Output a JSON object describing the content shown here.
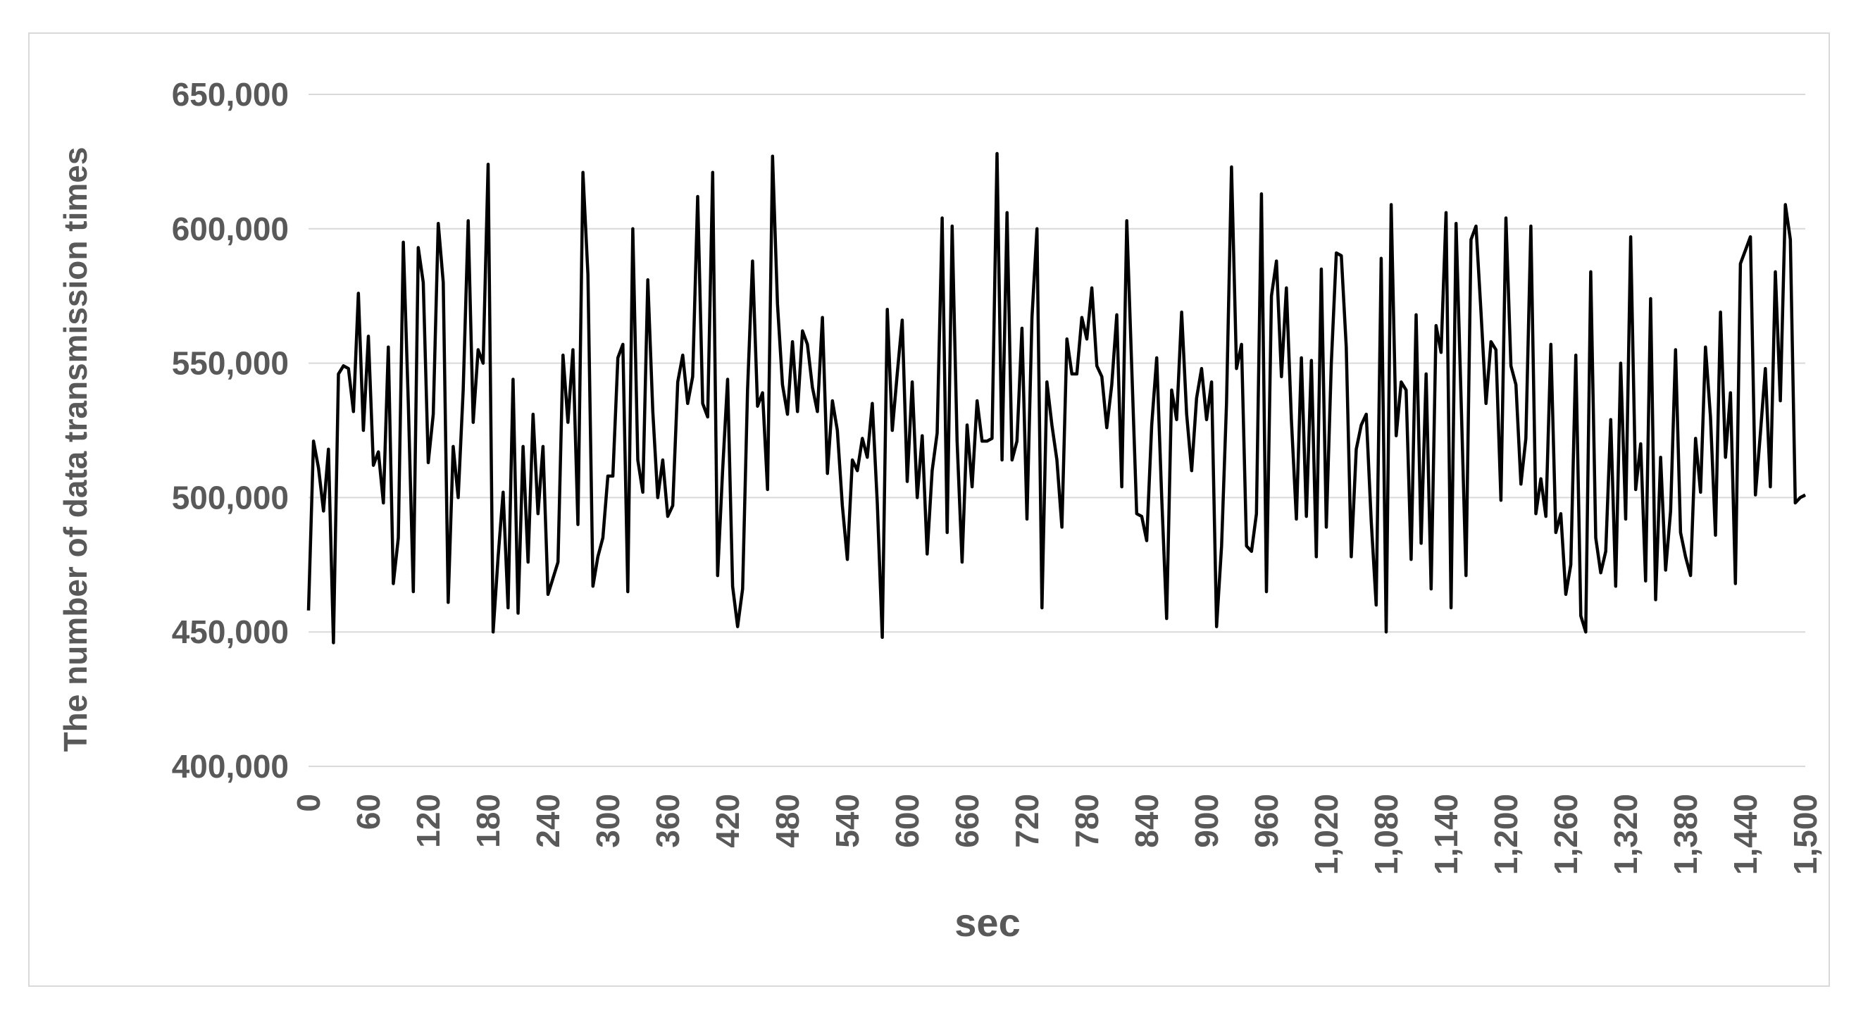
{
  "chart_data": {
    "type": "line",
    "title": "",
    "xlabel": "sec",
    "ylabel": "The number of data transmission  times",
    "xlim": [
      0,
      1500
    ],
    "ylim": [
      400000,
      650000
    ],
    "x_ticks": [
      0,
      60,
      120,
      180,
      240,
      300,
      360,
      420,
      480,
      540,
      600,
      660,
      720,
      780,
      840,
      900,
      960,
      1020,
      1080,
      1140,
      1200,
      1260,
      1320,
      1380,
      1440,
      1500
    ],
    "x_tick_labels": [
      "0",
      "60",
      "120",
      "180",
      "240",
      "300",
      "360",
      "420",
      "480",
      "540",
      "600",
      "660",
      "720",
      "780",
      "840",
      "900",
      "960",
      "1,020",
      "1,080",
      "1,140",
      "1,200",
      "1,260",
      "1,320",
      "1,380",
      "1,440",
      "1,500"
    ],
    "y_ticks": [
      400000,
      450000,
      500000,
      550000,
      600000,
      650000
    ],
    "y_tick_labels": [
      "400,000",
      "450,000",
      "500,000",
      "550,000",
      "600,000",
      "650,000"
    ],
    "grid": "horizontal",
    "legend": "none",
    "line_color": "#000000",
    "grid_color": "#d9d9d9",
    "tick_label_color": "#595959",
    "series": [
      {
        "x": [
          0,
          5,
          10,
          15,
          20,
          25,
          30,
          35,
          40,
          45,
          50,
          55,
          60,
          65,
          70,
          75,
          80,
          85,
          90,
          95,
          100,
          105,
          110,
          115,
          120,
          125,
          130,
          135,
          140,
          145,
          150,
          155,
          160,
          165,
          170,
          175,
          180,
          185,
          190,
          195,
          200,
          205,
          210,
          215,
          220,
          225,
          230,
          235,
          240,
          245,
          250,
          255,
          260,
          265,
          270,
          275,
          280,
          285,
          290,
          295,
          300,
          305,
          310,
          315,
          320,
          325,
          330,
          335,
          340,
          345,
          350,
          355,
          360,
          365,
          370,
          375,
          380,
          385,
          390,
          395,
          400,
          405,
          410,
          415,
          420,
          425,
          430,
          435,
          440,
          445,
          450,
          455,
          460,
          465,
          470,
          475,
          480,
          485,
          490,
          495,
          500,
          505,
          510,
          515,
          520,
          525,
          530,
          535,
          540,
          545,
          550,
          555,
          560,
          565,
          570,
          575,
          580,
          585,
          590,
          595,
          600,
          605,
          610,
          615,
          620,
          625,
          630,
          635,
          640,
          645,
          650,
          655,
          660,
          665,
          670,
          675,
          680,
          685,
          690,
          695,
          700,
          705,
          710,
          715,
          720,
          725,
          730,
          735,
          740,
          745,
          750,
          755,
          760,
          765,
          770,
          775,
          780,
          785,
          790,
          795,
          800,
          805,
          810,
          815,
          820,
          825,
          830,
          835,
          840,
          845,
          850,
          855,
          860,
          865,
          870,
          875,
          880,
          885,
          890,
          895,
          900,
          905,
          910,
          915,
          920,
          925,
          930,
          935,
          940,
          945,
          950,
          955,
          960,
          965,
          970,
          975,
          980,
          985,
          990,
          995,
          1000,
          1005,
          1010,
          1015,
          1020,
          1025,
          1030,
          1035,
          1040,
          1045,
          1050,
          1055,
          1060,
          1065,
          1070,
          1075,
          1080,
          1085,
          1090,
          1095,
          1100,
          1105,
          1110,
          1115,
          1120,
          1125,
          1130,
          1135,
          1140,
          1145,
          1150,
          1155,
          1160,
          1165,
          1170,
          1175,
          1180,
          1185,
          1190,
          1195,
          1200,
          1205,
          1210,
          1215,
          1220,
          1225,
          1230,
          1235,
          1240,
          1245,
          1250,
          1255,
          1260,
          1265,
          1270,
          1275,
          1280,
          1285,
          1290,
          1295,
          1300,
          1305,
          1310,
          1315,
          1320,
          1325,
          1330,
          1335,
          1340,
          1345,
          1350,
          1355,
          1360,
          1365,
          1370,
          1375,
          1380,
          1385,
          1390,
          1395,
          1400,
          1405,
          1410,
          1415,
          1420,
          1425,
          1430,
          1435,
          1440,
          1445,
          1450,
          1455,
          1460,
          1465,
          1470,
          1475,
          1480,
          1485,
          1490,
          1495,
          1500
        ],
        "values": [
          458000,
          521000,
          511000,
          495000,
          518000,
          446000,
          546000,
          549000,
          548000,
          532000,
          576000,
          525000,
          560000,
          512000,
          517000,
          498000,
          556000,
          468000,
          485000,
          595000,
          535000,
          465000,
          593000,
          580000,
          513000,
          531000,
          602000,
          580000,
          461000,
          519000,
          500000,
          540000,
          603000,
          528000,
          555000,
          550000,
          624000,
          450000,
          478000,
          502000,
          459000,
          544000,
          457000,
          519000,
          476000,
          531000,
          494000,
          519000,
          464000,
          470000,
          476000,
          553000,
          528000,
          555000,
          490000,
          621000,
          583000,
          467000,
          478000,
          485000,
          508000,
          508000,
          552000,
          557000,
          465000,
          600000,
          514000,
          502000,
          581000,
          532000,
          500000,
          514000,
          493000,
          497000,
          543000,
          553000,
          535000,
          545000,
          612000,
          535000,
          530000,
          621000,
          471000,
          510000,
          544000,
          467000,
          452000,
          466000,
          540000,
          588000,
          534000,
          539000,
          503000,
          627000,
          572000,
          542000,
          531000,
          558000,
          532000,
          562000,
          557000,
          541000,
          532000,
          567000,
          509000,
          536000,
          525000,
          497000,
          477000,
          514000,
          510000,
          522000,
          515000,
          535000,
          498000,
          448000,
          570000,
          525000,
          546000,
          566000,
          506000,
          543000,
          500000,
          523000,
          479000,
          510000,
          524000,
          604000,
          487000,
          601000,
          521000,
          476000,
          527000,
          504000,
          536000,
          521000,
          521000,
          522000,
          628000,
          514000,
          606000,
          514000,
          521000,
          563000,
          492000,
          567000,
          600000,
          459000,
          543000,
          527000,
          514000,
          489000,
          559000,
          546000,
          546000,
          567000,
          559000,
          578000,
          549000,
          545000,
          526000,
          542000,
          568000,
          504000,
          603000,
          548000,
          494000,
          493000,
          484000,
          527000,
          552000,
          500000,
          455000,
          540000,
          529000,
          569000,
          531000,
          510000,
          537000,
          548000,
          529000,
          543000,
          452000,
          482000,
          535000,
          623000,
          548000,
          557000,
          482000,
          480000,
          494000,
          613000,
          465000,
          575000,
          588000,
          545000,
          578000,
          529000,
          492000,
          552000,
          493000,
          551000,
          478000,
          585000,
          489000,
          550000,
          591000,
          590000,
          556000,
          478000,
          518000,
          527000,
          531000,
          491000,
          460000,
          589000,
          450000,
          609000,
          523000,
          543000,
          540000,
          477000,
          568000,
          483000,
          546000,
          466000,
          564000,
          554000,
          606000,
          459000,
          602000,
          537000,
          471000,
          596000,
          601000,
          569000,
          535000,
          558000,
          555000,
          499000,
          604000,
          549000,
          542000,
          505000,
          522000,
          601000,
          494000,
          507000,
          493000,
          557000,
          487000,
          494000,
          464000,
          475000,
          553000,
          456000,
          450000,
          584000,
          485000,
          472000,
          480000,
          529000,
          467000,
          550000,
          492000,
          597000,
          503000,
          520000,
          469000,
          574000,
          462000,
          515000,
          473000,
          495000,
          555000,
          487000,
          478000,
          471000,
          522000,
          502000,
          556000,
          530000,
          486000,
          569000,
          515000,
          539000,
          468000,
          587000,
          592000,
          597000,
          501000,
          524000,
          548000,
          504000,
          584000,
          536000,
          609000,
          596000,
          498000,
          500000,
          501000
        ]
      }
    ]
  }
}
